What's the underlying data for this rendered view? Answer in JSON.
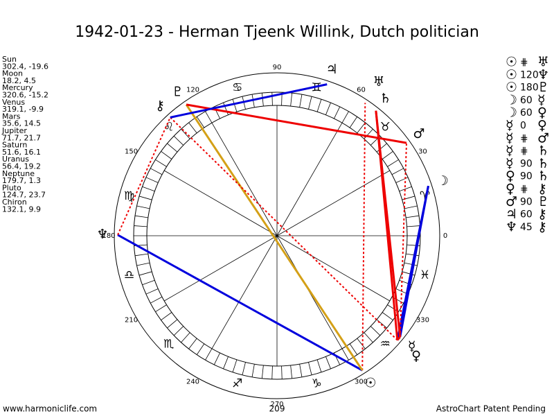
{
  "title": "1942-01-23 - Herman Tjeenk Willink, Dutch politician",
  "planets": [
    {
      "name": "Sun",
      "coords": "302.4, -19.6",
      "glyph": "☉"
    },
    {
      "name": "Moon",
      "coords": "18.2, 4.5",
      "glyph": "☽"
    },
    {
      "name": "Mercury",
      "coords": "320.6, -15.2",
      "glyph": "☿"
    },
    {
      "name": "Venus",
      "coords": "319.1, -9.9",
      "glyph": "♀"
    },
    {
      "name": "Mars",
      "coords": "35.6, 14.5",
      "glyph": "♂"
    },
    {
      "name": "Jupiter",
      "coords": "71.7, 21.7",
      "glyph": "♃"
    },
    {
      "name": "Saturn",
      "coords": "51.6, 16.1",
      "glyph": "♄"
    },
    {
      "name": "Uranus",
      "coords": "56.4, 19.2",
      "glyph": "♅"
    },
    {
      "name": "Neptune",
      "coords": "179.7, 1.3",
      "glyph": "♆"
    },
    {
      "name": "Pluto",
      "coords": "124.7, 23.7",
      "glyph": "♇"
    },
    {
      "name": "Chiron",
      "coords": "132.1, 9.9",
      "glyph": "⚷"
    }
  ],
  "wheel": {
    "degrees": [
      0,
      30,
      60,
      90,
      120,
      150,
      180,
      210,
      240,
      270,
      300,
      330
    ],
    "signs": [
      "♈",
      "♉",
      "♊",
      "♋",
      "♌",
      "♍",
      "♎",
      "♏",
      "♐",
      "♑",
      "♒",
      "♓"
    ]
  },
  "aspects": [
    {
      "p1": "☉",
      "aspect": "⋕",
      "p2": "♅"
    },
    {
      "p1": "☉",
      "aspect": "120",
      "p2": "♆"
    },
    {
      "p1": "☉",
      "aspect": "180",
      "p2": "♇"
    },
    {
      "p1": "☽",
      "aspect": "60",
      "p2": "☿"
    },
    {
      "p1": "☽",
      "aspect": "60",
      "p2": "♀"
    },
    {
      "p1": "☿",
      "aspect": "0",
      "p2": "♀"
    },
    {
      "p1": "☿",
      "aspect": "⋕",
      "p2": "♂"
    },
    {
      "p1": "☿",
      "aspect": "⋕",
      "p2": "♄"
    },
    {
      "p1": "☿",
      "aspect": "90",
      "p2": "♄"
    },
    {
      "p1": "♀",
      "aspect": "90",
      "p2": "♄"
    },
    {
      "p1": "♀",
      "aspect": "⋕",
      "p2": "⚷"
    },
    {
      "p1": "♂",
      "aspect": "90",
      "p2": "♇"
    },
    {
      "p1": "♃",
      "aspect": "60",
      "p2": "⚷"
    },
    {
      "p1": "♆",
      "aspect": "45",
      "p2": "⚷"
    }
  ],
  "footer": {
    "left": "www.harmoniclife.com",
    "center": "209",
    "right": "AstroChart Patent Pending"
  }
}
